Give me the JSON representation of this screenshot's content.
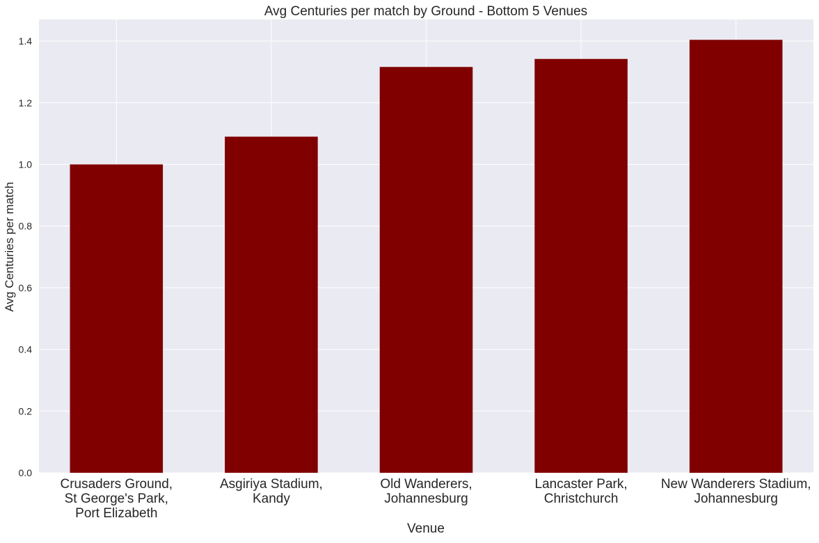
{
  "chart_data": {
    "type": "bar",
    "title": "Avg Centuries per match by Ground - Bottom 5 Venues",
    "xlabel": "Venue",
    "ylabel": "Avg Centuries per match",
    "categories": [
      [
        "Crusaders Ground,",
        "St George's Park,",
        "Port Elizabeth"
      ],
      [
        "Asgiriya Stadium,",
        "Kandy"
      ],
      [
        "Old Wanderers,",
        "Johannesburg"
      ],
      [
        "Lancaster Park,",
        "Christchurch"
      ],
      [
        "New Wanderers Stadium,",
        "Johannesburg"
      ]
    ],
    "values": [
      1.0,
      1.09,
      1.316,
      1.342,
      1.404
    ],
    "ylim": [
      0,
      1.47
    ],
    "yticks": [
      "0.0",
      "0.2",
      "0.4",
      "0.6",
      "0.8",
      "1.0",
      "1.2",
      "1.4"
    ],
    "grid": true,
    "colors": {
      "bar": "#800000",
      "plot_background": "#eaeaf2",
      "grid": "#ffffff",
      "text": "#262626"
    }
  }
}
